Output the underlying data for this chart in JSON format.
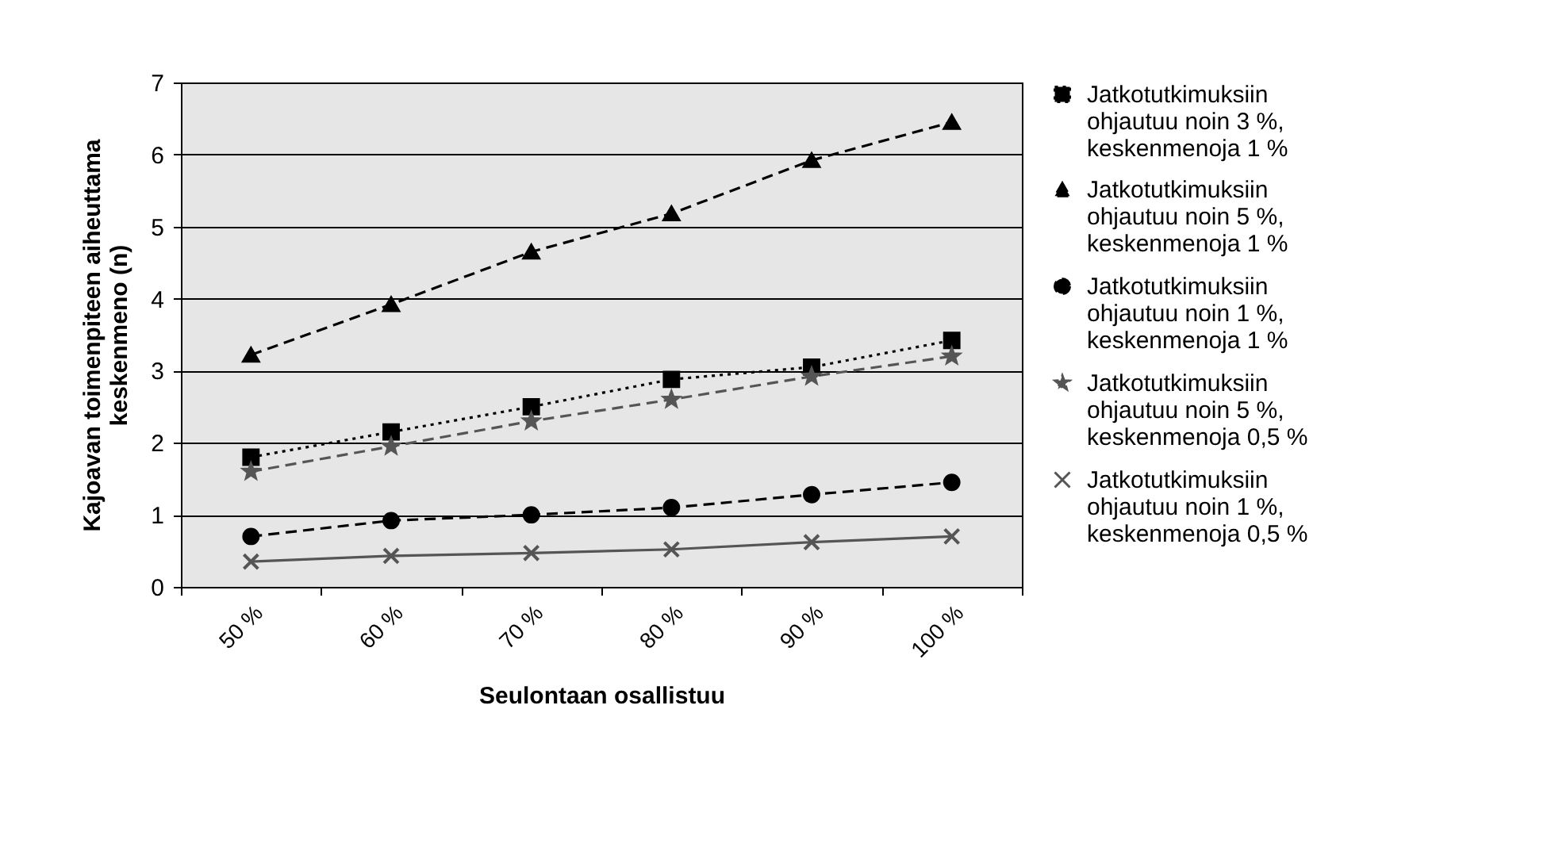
{
  "chart_data": {
    "type": "line",
    "xlabel": "Seulontaan osallistuu",
    "ylabel": "Kajoavan toimenpiteen aiheuttama keskenmeno (n)",
    "categories": [
      "50 %",
      "60 %",
      "70 %",
      "80 %",
      "90 %",
      "100 %"
    ],
    "series": [
      {
        "name": "Jatkotutkimuksiin ohjautuu noin 3 %, keskenmenoja 1 %",
        "color": "#000000",
        "marker": "square",
        "line_style": "dotted",
        "values": [
          1.8,
          2.15,
          2.5,
          2.88,
          3.05,
          3.42
        ]
      },
      {
        "name": "Jatkotutkimuksiin ohjautuu noin 5 %, keskenmenoja 1 %",
        "color": "#000000",
        "marker": "triangle",
        "line_style": "dashed",
        "values": [
          3.22,
          3.92,
          4.65,
          5.18,
          5.92,
          6.45
        ]
      },
      {
        "name": "Jatkotutkimuksiin ohjautuu noin 1 %, keskenmenoja 1 %",
        "color": "#000000",
        "marker": "circle",
        "line_style": "dashed",
        "values": [
          0.7,
          0.92,
          1.0,
          1.1,
          1.28,
          1.45
        ]
      },
      {
        "name": "Jatkotutkimuksiin ohjautuu noin 5 %, keskenmenoja 0,5 %",
        "color": "#555555",
        "marker": "star",
        "line_style": "dashed",
        "values": [
          1.6,
          1.95,
          2.3,
          2.6,
          2.92,
          3.2
        ]
      },
      {
        "name": "Jatkotutkimuksiin ohjautuu noin 1 %, keskenmenoja 0,5 %",
        "color": "#555555",
        "marker": "cross",
        "line_style": "solid",
        "values": [
          0.35,
          0.43,
          0.47,
          0.52,
          0.62,
          0.7
        ]
      }
    ],
    "ylim": [
      0,
      7
    ],
    "yticks": [
      0,
      1,
      2,
      3,
      4,
      5,
      6,
      7
    ],
    "grid": "y",
    "legend": "right"
  }
}
